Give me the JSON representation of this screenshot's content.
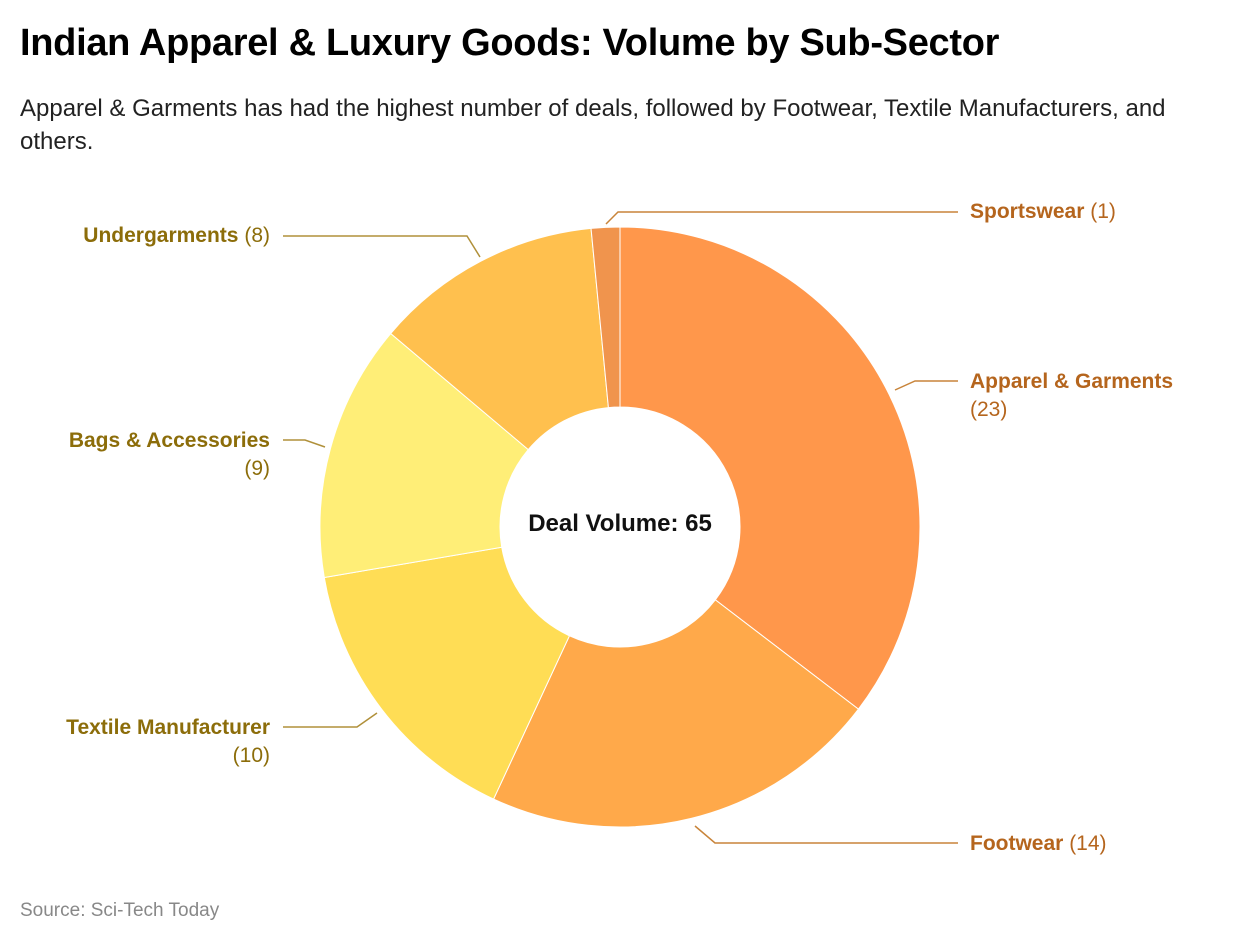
{
  "chart_data": {
    "type": "pie",
    "donut": true,
    "title": "Indian Apparel & Luxury Goods: Volume by Sub-Sector",
    "subtitle": "Apparel & Garments has had the highest number of deals, followed by Footwear, Textile Manufacturers, and others.",
    "center_label": "Deal Volume: 65",
    "source": "Source: Sci-Tech Today",
    "categories": [
      "Apparel & Garments",
      "Footwear",
      "Textile Manufacturer",
      "Bags & Accessories",
      "Undergarments",
      "Sportswear"
    ],
    "values": [
      23,
      14,
      10,
      9,
      8,
      1
    ],
    "value_labels": [
      "(23)",
      "(14)",
      "(10)",
      "(9)",
      "(8)",
      "(1)"
    ],
    "colors": [
      "#FF974B",
      "#FFA94A",
      "#FFDD55",
      "#FFEE77",
      "#FFC04E",
      "#F0944D"
    ],
    "label_colors": {
      "right": "#B5651D",
      "left": "#8C6D0A"
    }
  }
}
